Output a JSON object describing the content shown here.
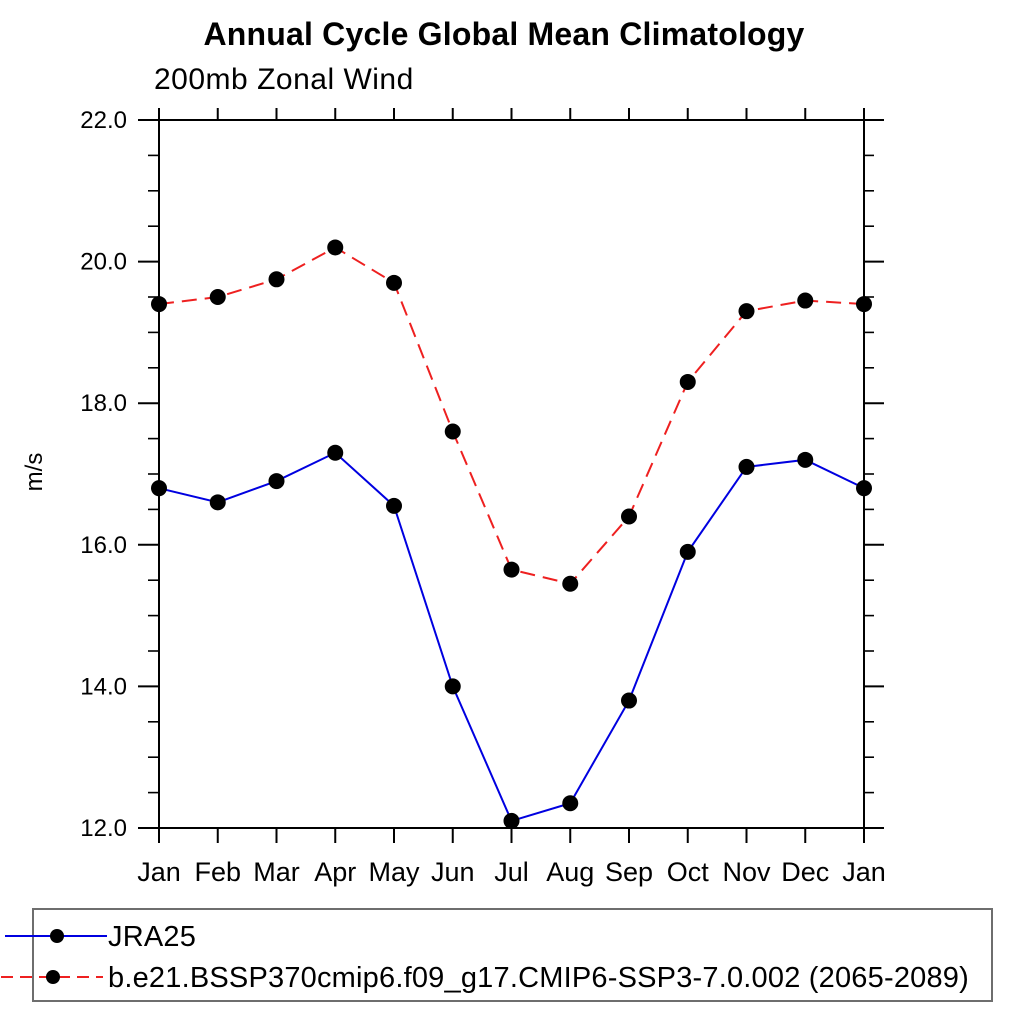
{
  "chart": {
    "title": "Annual Cycle Global Mean Climatology",
    "subtitle": "200mb Zonal Wind",
    "ylabel": "m/s"
  },
  "chart_data": {
    "type": "line",
    "title": "Annual Cycle Global Mean Climatology",
    "subtitle": "200mb Zonal Wind",
    "xlabel": "",
    "ylabel": "m/s",
    "categories": [
      "Jan",
      "Feb",
      "Mar",
      "Apr",
      "May",
      "Jun",
      "Jul",
      "Aug",
      "Sep",
      "Oct",
      "Nov",
      "Dec",
      "Jan"
    ],
    "ylim": [
      12.0,
      22.0
    ],
    "ytick_major": [
      12.0,
      14.0,
      16.0,
      18.0,
      20.0,
      22.0
    ],
    "ytick_labels": [
      "12.0",
      "14.0",
      "16.0",
      "18.0",
      "20.0",
      "22.0"
    ],
    "ytick_minor_step": 0.5,
    "grid": false,
    "legend_position": "bottom",
    "marker": "filled-circle",
    "marker_color": "#000000",
    "series": [
      {
        "name": "JRA25",
        "color": "#0000e0",
        "style": "solid",
        "values": [
          16.8,
          16.6,
          16.9,
          17.3,
          16.55,
          14.0,
          12.1,
          12.35,
          13.8,
          15.9,
          17.1,
          17.2,
          16.8
        ]
      },
      {
        "name": "b.e21.BSSP370cmip6.f09_g17.CMIP6-SSP3-7.0.002 (2065-2089)",
        "color": "#ee2020",
        "style": "dashed",
        "values": [
          19.4,
          19.5,
          19.75,
          20.2,
          19.7,
          17.6,
          15.65,
          15.45,
          16.4,
          18.3,
          19.3,
          19.45,
          19.4
        ]
      }
    ]
  }
}
